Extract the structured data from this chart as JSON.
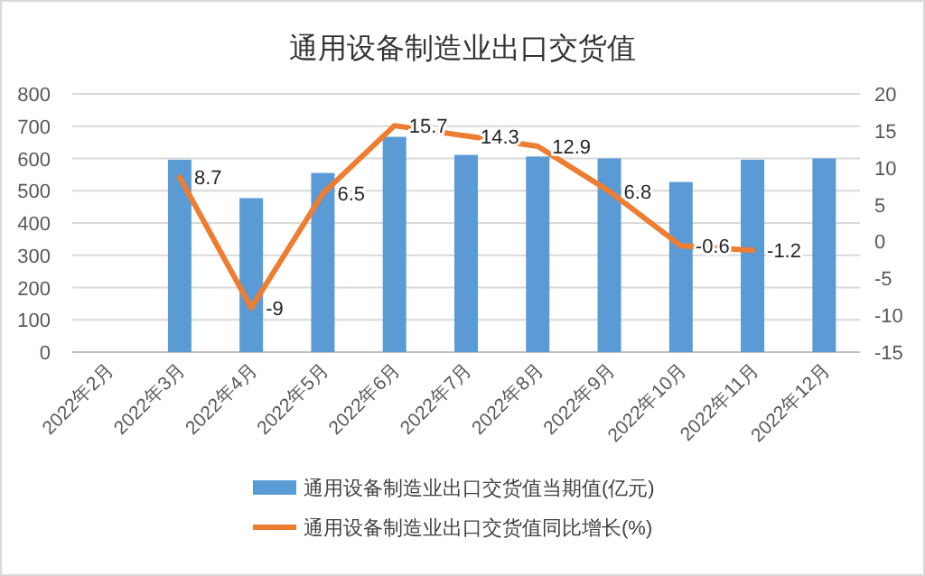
{
  "chart_data": {
    "type": "bar",
    "title": "通用设备制造业出口交货值",
    "categories": [
      "2022年2月",
      "2022年3月",
      "2022年4月",
      "2022年5月",
      "2022年6月",
      "2022年7月",
      "2022年8月",
      "2022年9月",
      "2022年10月",
      "2022年11月",
      "2022年12月"
    ],
    "series": [
      {
        "name": "通用设备制造业出口交货值当期值(亿元)",
        "color": "#5b9bd5",
        "values": [
          null,
          596,
          477,
          555,
          667,
          611,
          606,
          600,
          527,
          596,
          600
        ]
      },
      {
        "name": "通用设备制造业出口交货值同比增长(%)",
        "type": "line",
        "axis": "y2",
        "color": "#ed7d31",
        "values": [
          null,
          8.7,
          -9,
          6.5,
          15.7,
          14.3,
          12.9,
          6.8,
          -0.6,
          -1.2,
          null
        ],
        "value_labels": [
          null,
          "8.7",
          "-9",
          "6.5",
          "15.7",
          "14.3",
          "12.9",
          "6.8",
          "-0.6",
          "-1.2",
          null
        ]
      }
    ],
    "ylim": [
      0,
      800
    ],
    "yticks": [
      0,
      100,
      200,
      300,
      400,
      500,
      600,
      700,
      800
    ],
    "y2lim": [
      -15,
      20
    ],
    "y2ticks": [
      -15,
      -10,
      -5,
      0,
      5,
      10,
      15,
      20
    ],
    "grid": "y",
    "legend": "bottom",
    "marker": "none",
    "line_style": "solid"
  }
}
